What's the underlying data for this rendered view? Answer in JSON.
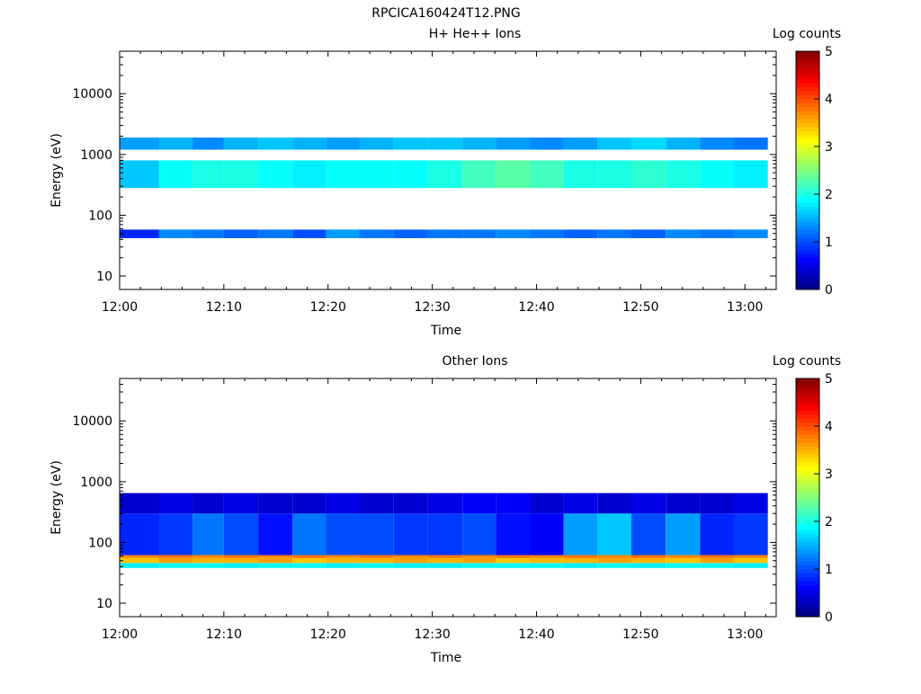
{
  "figure_title": "RPCICA160424T12.PNG",
  "colorbar_label": "Log counts",
  "colormap": [
    "#000080",
    "#0000ff",
    "#0080ff",
    "#00ffff",
    "#80ff80",
    "#ffff00",
    "#ff8000",
    "#ff0000",
    "#800000"
  ],
  "chart_data": [
    {
      "type": "heatmap",
      "title": "H+ He++ Ions",
      "xlabel": "Time",
      "ylabel": "Energy (eV)",
      "x_ticks": [
        "12:00",
        "12:10",
        "12:20",
        "12:30",
        "12:40",
        "12:50",
        "13:00"
      ],
      "y_ticks": [
        "10",
        "100",
        "1000",
        "10000"
      ],
      "y_scale": "log",
      "ylim_eV": [
        6,
        50000
      ],
      "xlim_minutes": [
        0,
        63
      ],
      "colorbar": {
        "label": "Log counts",
        "ticks": [
          "0",
          "1",
          "2",
          "3",
          "4",
          "5"
        ],
        "range": [
          0,
          5
        ]
      },
      "time_bins_minutes": [
        0,
        3.75,
        7.0,
        10.0,
        13.3,
        16.6,
        19.8,
        23.0,
        26.3,
        29.6,
        32.9,
        36.1,
        39.4,
        42.6,
        45.9,
        49.1,
        52.4,
        55.7,
        58.9,
        62.2
      ],
      "bands": [
        {
          "e_low": 42,
          "e_high": 58,
          "values": [
            0.8,
            1.3,
            1.2,
            1.1,
            1.2,
            1.0,
            1.4,
            1.2,
            1.1,
            1.2,
            1.2,
            1.3,
            1.2,
            1.1,
            1.2,
            1.1,
            1.3,
            1.2,
            1.3
          ]
        },
        {
          "e_low": 280,
          "e_high": 800,
          "values": [
            1.6,
            1.9,
            2.0,
            2.0,
            1.9,
            1.8,
            1.9,
            1.9,
            1.9,
            2.0,
            2.2,
            2.3,
            2.2,
            2.0,
            2.0,
            2.1,
            2.0,
            1.9,
            1.8
          ]
        },
        {
          "e_low": 1200,
          "e_high": 1900,
          "values": [
            1.4,
            1.5,
            1.3,
            1.5,
            1.6,
            1.5,
            1.4,
            1.5,
            1.6,
            1.6,
            1.5,
            1.4,
            1.3,
            1.4,
            1.6,
            1.7,
            1.5,
            1.3,
            1.2
          ]
        }
      ]
    },
    {
      "type": "heatmap",
      "title": "Other Ions",
      "xlabel": "Time",
      "ylabel": "Energy (eV)",
      "x_ticks": [
        "12:00",
        "12:10",
        "12:20",
        "12:30",
        "12:40",
        "12:50",
        "13:00"
      ],
      "y_ticks": [
        "10",
        "100",
        "1000",
        "10000"
      ],
      "y_scale": "log",
      "ylim_eV": [
        6,
        50000
      ],
      "xlim_minutes": [
        0,
        63
      ],
      "colorbar": {
        "label": "Log counts",
        "ticks": [
          "0",
          "1",
          "2",
          "3",
          "4",
          "5"
        ],
        "range": [
          0,
          5
        ]
      },
      "time_bins_minutes": [
        0,
        3.75,
        7.0,
        10.0,
        13.3,
        16.6,
        19.8,
        23.0,
        26.3,
        29.6,
        32.9,
        36.1,
        39.4,
        42.6,
        45.9,
        49.1,
        52.4,
        55.7,
        58.9,
        62.2
      ],
      "bands": [
        {
          "e_low": 38,
          "e_high": 46,
          "values": [
            1.8,
            1.9,
            1.9,
            1.8,
            1.9,
            1.9,
            1.8,
            1.9,
            1.8,
            1.8,
            1.9,
            1.9,
            1.9,
            1.8,
            1.9,
            1.8,
            1.9,
            1.9,
            1.8
          ]
        },
        {
          "e_low": 46,
          "e_high": 55,
          "values": [
            3.4,
            3.6,
            3.5,
            3.5,
            3.6,
            3.4,
            3.5,
            3.5,
            3.6,
            3.5,
            3.6,
            3.4,
            3.5,
            3.5,
            3.6,
            3.5,
            3.4,
            3.6,
            3.4
          ]
        },
        {
          "e_low": 55,
          "e_high": 62,
          "values": [
            3.7,
            3.8,
            3.7,
            3.8,
            3.7,
            3.8,
            3.7,
            3.8,
            3.7,
            3.8,
            3.7,
            3.8,
            3.7,
            3.8,
            3.7,
            3.8,
            3.7,
            3.8,
            3.7
          ]
        },
        {
          "e_low": 62,
          "e_high": 300,
          "values": [
            0.8,
            0.9,
            1.2,
            1.0,
            0.7,
            1.2,
            1.0,
            1.0,
            0.9,
            0.9,
            1.0,
            0.7,
            0.6,
            1.4,
            1.6,
            1.0,
            1.4,
            0.8,
            0.9
          ]
        },
        {
          "e_low": 300,
          "e_high": 650,
          "values": [
            0.4,
            0.5,
            0.4,
            0.5,
            0.4,
            0.4,
            0.5,
            0.4,
            0.4,
            0.5,
            0.6,
            0.6,
            0.4,
            0.5,
            0.4,
            0.5,
            0.4,
            0.4,
            0.5
          ]
        }
      ]
    }
  ]
}
